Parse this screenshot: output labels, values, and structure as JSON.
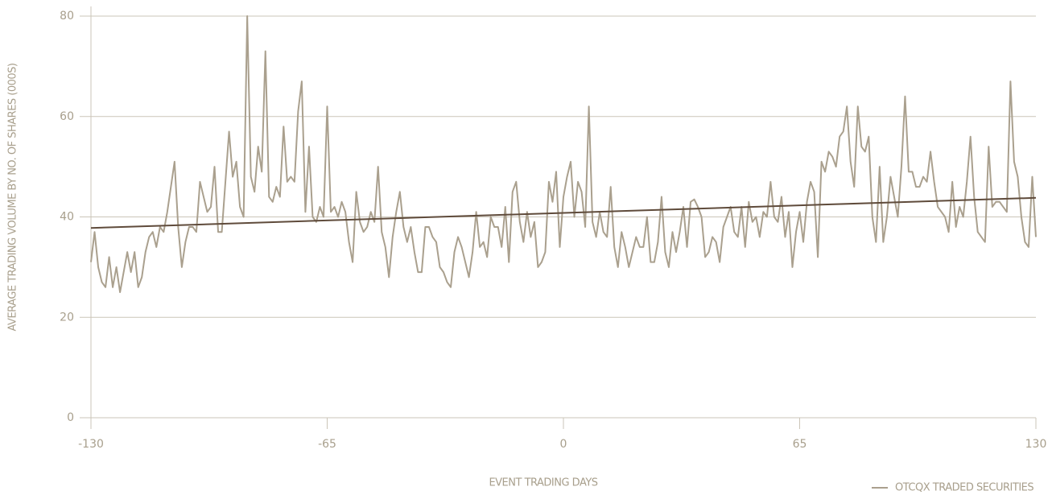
{
  "chart_data": {
    "type": "line",
    "x_label": "EVENT TRADING DAYS",
    "y_label": "AVERAGE TRADING VOLUME BY NO. OF SHARES (000S)",
    "xlim": [
      -130,
      130
    ],
    "xticks": [
      -130,
      -65,
      0,
      65,
      130
    ],
    "ylim": [
      0,
      80
    ],
    "yticks": [
      0,
      20,
      40,
      60,
      80
    ],
    "grid": true,
    "legend": "bottom-right",
    "x": [
      -130,
      -129,
      -128,
      -127,
      -126,
      -125,
      -124,
      -123,
      -122,
      -121,
      -120,
      -119,
      -118,
      -117,
      -116,
      -115,
      -114,
      -113,
      -112,
      -111,
      -110,
      -109,
      -108,
      -107,
      -106,
      -105,
      -104,
      -103,
      -102,
      -101,
      -100,
      -99,
      -98,
      -97,
      -96,
      -95,
      -94,
      -93,
      -92,
      -91,
      -90,
      -89,
      -88,
      -87,
      -86,
      -85,
      -84,
      -83,
      -82,
      -81,
      -80,
      -79,
      -78,
      -77,
      -76,
      -75,
      -74,
      -73,
      -72,
      -71,
      -70,
      -69,
      -68,
      -67,
      -66,
      -65,
      -64,
      -63,
      -62,
      -61,
      -60,
      -59,
      -58,
      -57,
      -56,
      -55,
      -54,
      -53,
      -52,
      -51,
      -50,
      -49,
      -48,
      -47,
      -46,
      -45,
      -44,
      -43,
      -42,
      -41,
      -40,
      -39,
      -38,
      -37,
      -36,
      -35,
      -34,
      -33,
      -32,
      -31,
      -30,
      -29,
      -28,
      -27,
      -26,
      -25,
      -24,
      -23,
      -22,
      -21,
      -20,
      -19,
      -18,
      -17,
      -16,
      -15,
      -14,
      -13,
      -12,
      -11,
      -10,
      -9,
      -8,
      -7,
      -6,
      -5,
      -4,
      -3,
      -2,
      -1,
      0,
      1,
      2,
      3,
      4,
      5,
      6,
      7,
      8,
      9,
      10,
      11,
      12,
      13,
      14,
      15,
      16,
      17,
      18,
      19,
      20,
      21,
      22,
      23,
      24,
      25,
      26,
      27,
      28,
      29,
      30,
      31,
      32,
      33,
      34,
      35,
      36,
      37,
      38,
      39,
      40,
      41,
      42,
      43,
      44,
      45,
      46,
      47,
      48,
      49,
      50,
      51,
      52,
      53,
      54,
      55,
      56,
      57,
      58,
      59,
      60,
      61,
      62,
      63,
      64,
      65,
      66,
      67,
      68,
      69,
      70,
      71,
      72,
      73,
      74,
      75,
      76,
      77,
      78,
      79,
      80,
      81,
      82,
      83,
      84,
      85,
      86,
      87,
      88,
      89,
      90,
      91,
      92,
      93,
      94,
      95,
      96,
      97,
      98,
      99,
      100,
      101,
      102,
      103,
      104,
      105,
      106,
      107,
      108,
      109,
      110,
      111,
      112,
      113,
      114,
      115,
      116,
      117,
      118,
      119,
      120,
      121,
      122,
      123,
      124,
      125,
      126,
      127,
      128,
      129,
      130
    ],
    "series": [
      {
        "name": "OTCQX TRADED SECURITIES",
        "color": "#aaa08e",
        "values": [
          31,
          37,
          30,
          27,
          26,
          32,
          26,
          30,
          25,
          29,
          33,
          29,
          33,
          26,
          28,
          33,
          36,
          37,
          34,
          38,
          37,
          41,
          46,
          51,
          38,
          30,
          35,
          38,
          38,
          37,
          47,
          44,
          41,
          42,
          50,
          37,
          37,
          47,
          57,
          48,
          51,
          42,
          40,
          80,
          48,
          45,
          54,
          49,
          73,
          44,
          43,
          46,
          44,
          58,
          47,
          48,
          47,
          61,
          67,
          41,
          54,
          40,
          39,
          42,
          40,
          62,
          41,
          42,
          40,
          43,
          41,
          35,
          31,
          45,
          39,
          37,
          38,
          41,
          39,
          50,
          37,
          34,
          28,
          36,
          41,
          45,
          38,
          35,
          38,
          33,
          29,
          29,
          38,
          38,
          36,
          35,
          30,
          29,
          27,
          26,
          33,
          36,
          34,
          31,
          28,
          33,
          41,
          34,
          35,
          32,
          40,
          38,
          38,
          34,
          42,
          31,
          45,
          47,
          39,
          35,
          41,
          36,
          39,
          30,
          31,
          33,
          47,
          43,
          49,
          34,
          44,
          48,
          51,
          40,
          47,
          45,
          38,
          62,
          39,
          36,
          41,
          37,
          36,
          46,
          34,
          30,
          37,
          34,
          30,
          33,
          36,
          34,
          34,
          40,
          31,
          31,
          35,
          44,
          33,
          30,
          37,
          33,
          37,
          42,
          34,
          43,
          43.5,
          42,
          40,
          32,
          33,
          36,
          35,
          31,
          38,
          40,
          42,
          37,
          36,
          42,
          34,
          43,
          39,
          40,
          36,
          41,
          40,
          47,
          40,
          39,
          44,
          36,
          41,
          30,
          37,
          41,
          35,
          43,
          47,
          45,
          32,
          51,
          49,
          53,
          52,
          50,
          56,
          57,
          62,
          51,
          46,
          62,
          54,
          53,
          56,
          40,
          35,
          50,
          35,
          40,
          48,
          44,
          40,
          50,
          64,
          49,
          49,
          46,
          46,
          48,
          47,
          53,
          47,
          42,
          41,
          40,
          37,
          47,
          38,
          42,
          40,
          47,
          56,
          44,
          37,
          36,
          35,
          54,
          42,
          43,
          43,
          42,
          41,
          67,
          51,
          48,
          40,
          35,
          34,
          48,
          36
        ]
      }
    ],
    "trendline": {
      "color": "#5f4b3b",
      "x": [
        -130,
        130
      ],
      "values": [
        37.8,
        43.8
      ]
    }
  }
}
